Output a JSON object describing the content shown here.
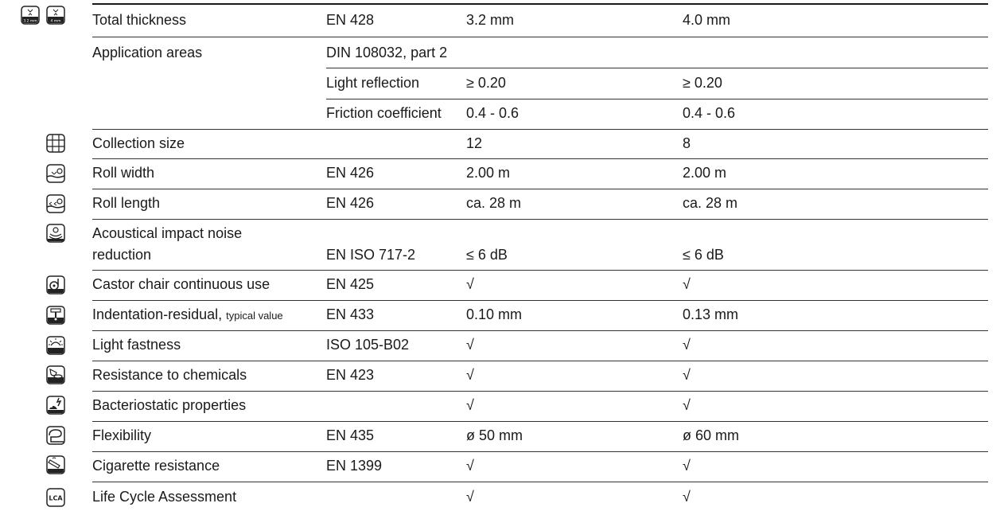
{
  "rows": [
    {
      "id": "total-thickness",
      "label": "Total thickness",
      "standard": "EN 428",
      "v1": "3.2 mm",
      "v2": "4.0 mm",
      "icon": "thickness-icon"
    },
    {
      "id": "application-areas",
      "label": "Application areas",
      "standard": "DIN 108032, part 2",
      "v1": "",
      "v2": ""
    },
    {
      "id": "light-reflection",
      "label": "",
      "standard": "Light reflection",
      "v1": "≥ 0.20",
      "v2": "≥ 0.20"
    },
    {
      "id": "friction-coefficient",
      "label": "",
      "standard": "Friction coefficient",
      "v1": "0.4 - 0.6",
      "v2": "0.4 - 0.6"
    },
    {
      "id": "collection-size",
      "label": "Collection size",
      "standard": "",
      "v1": "12",
      "v2": "8",
      "icon": "grid-icon"
    },
    {
      "id": "roll-width",
      "label": "Roll width",
      "standard": "EN 426",
      "v1": "2.00 m",
      "v2": "2.00 m",
      "icon": "roll-width-icon"
    },
    {
      "id": "roll-length",
      "label": "Roll length",
      "standard": "EN 426",
      "v1": "ca. 28 m",
      "v2": "ca. 28 m",
      "icon": "roll-length-icon"
    },
    {
      "id": "acoustical",
      "label": "Acoustical impact noise",
      "label2": "reduction",
      "standard": "EN ISO 717-2",
      "v1": "≤ 6 dB",
      "v2": "≤ 6 dB",
      "icon": "acoustic-icon"
    },
    {
      "id": "castor-chair",
      "label": "Castor chair continuous use",
      "standard": "EN 425",
      "v1": "√",
      "v2": "√",
      "icon": "castor-chair-icon"
    },
    {
      "id": "indentation",
      "label": "Indentation-residual, ",
      "label_small": "typical value",
      "standard": "EN 433",
      "v1": "0.10 mm",
      "v2": "0.13 mm",
      "icon": "indentation-icon"
    },
    {
      "id": "light-fastness",
      "label": "Light fastness",
      "standard": "ISO 105-B02",
      "v1": "√",
      "v2": "√",
      "icon": "sun-icon"
    },
    {
      "id": "chemicals",
      "label": "Resistance to chemicals",
      "standard": "EN 423",
      "v1": "√",
      "v2": "√",
      "icon": "chemical-icon"
    },
    {
      "id": "bacteriostatic",
      "label": "Bacteriostatic properties",
      "standard": "",
      "v1": "√",
      "v2": "√",
      "icon": "bacteria-icon"
    },
    {
      "id": "flexibility",
      "label": "Flexibility",
      "standard": "EN 435",
      "v1": "ø 50 mm",
      "v2": "ø 60 mm",
      "icon": "flexibility-icon"
    },
    {
      "id": "cigarette",
      "label": "Cigarette resistance",
      "standard": "EN 1399",
      "v1": "√",
      "v2": "√",
      "icon": "cigarette-icon"
    },
    {
      "id": "lca",
      "label": "Life Cycle Assessment",
      "standard": "",
      "v1": "√",
      "v2": "√",
      "icon": "lca-icon"
    }
  ],
  "icon_texts": {
    "thick1": "3.2 mm",
    "thick2": "4 mm",
    "lca": "LCA"
  }
}
